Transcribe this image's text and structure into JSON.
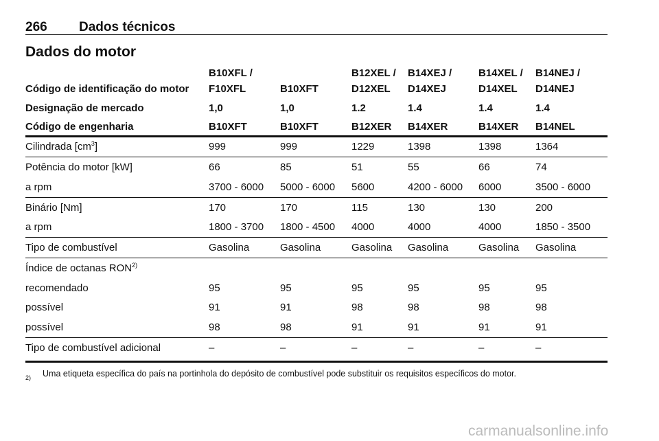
{
  "header": {
    "page_number": "266",
    "section": "Dados técnicos"
  },
  "title": "Dados do motor",
  "table": {
    "head": [
      [
        [
          "Código de identificação do motor"
        ],
        [
          "B10XFL /",
          "F10XFL"
        ],
        [
          "B10XFT"
        ],
        [
          "B12XEL /",
          "D12XEL"
        ],
        [
          "B14XEJ /",
          "D14XEJ"
        ],
        [
          "B14XEL /",
          "D14XEL"
        ],
        [
          "B14NEJ /",
          "D14NEJ"
        ]
      ],
      [
        "Designação de mercado",
        "1,0",
        "1,0",
        "1.2",
        "1.4",
        "1.4",
        "1.4"
      ],
      [
        "Código de engenharia",
        "B10XFT",
        "B10XFT",
        "B12XER",
        "B14XER",
        "B14XER",
        "B14NEL"
      ]
    ],
    "groups": [
      [
        [
          {
            "text": "Cilindrada [cm",
            "sup": "3",
            "tail": "]"
          },
          "999",
          "999",
          "1229",
          "1398",
          "1398",
          "1364"
        ]
      ],
      [
        [
          "Potência do motor [kW]",
          "66",
          "85",
          "51",
          "55",
          "66",
          "74"
        ],
        [
          "a rpm",
          "3700 - 6000",
          "5000 - 6000",
          "5600",
          "4200 - 6000",
          "6000",
          "3500 - 6000"
        ]
      ],
      [
        [
          "Binário [Nm]",
          "170",
          "170",
          "115",
          "130",
          "130",
          "200"
        ],
        [
          "a rpm",
          "1800 - 3700",
          "1800 - 4500",
          "4000",
          "4000",
          "4000",
          "1850 - 3500"
        ]
      ],
      [
        [
          "Tipo de combustível",
          "Gasolina",
          "Gasolina",
          "Gasolina",
          "Gasolina",
          "Gasolina",
          "Gasolina"
        ]
      ],
      [
        [
          {
            "text": "Índice de octanas RON",
            "sup": "2)"
          }
        ],
        [
          "recomendado",
          "95",
          "95",
          "95",
          "95",
          "95",
          "95"
        ],
        [
          "possível",
          "91",
          "91",
          "98",
          "98",
          "98",
          "98"
        ],
        [
          "possível",
          "98",
          "98",
          "91",
          "91",
          "91",
          "91"
        ]
      ],
      [
        [
          "Tipo de combustível adicional",
          "–",
          "–",
          "–",
          "–",
          "–",
          "–"
        ]
      ]
    ]
  },
  "footnote": {
    "mark": "2)",
    "text": "Uma etiqueta específica do país na portinhola do depósito de combustível pode substituir os requisitos específicos do motor."
  },
  "watermark": "carmanualsonline.info"
}
